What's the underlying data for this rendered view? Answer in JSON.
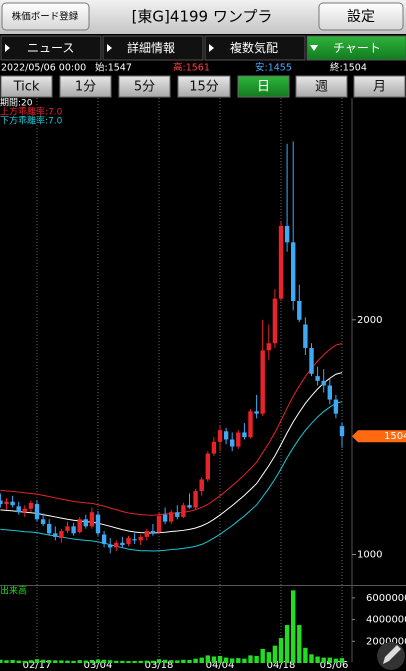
{
  "header": {
    "register_button": "株価ボード登録",
    "title": "[東G]4199 ワンプラ",
    "settings_button": "設定"
  },
  "tabs": [
    "ニュース",
    "詳細情報",
    "複数気配",
    "チャート"
  ],
  "quote": {
    "datetime": "2022/05/06 00:00",
    "open": "始:1547",
    "high": "高:1561",
    "low": "安:1455",
    "close": "終:1504"
  },
  "periods": [
    "Tick",
    "1分",
    "5分",
    "15分",
    "日",
    "週",
    "月"
  ],
  "chart_data": {
    "type": "candlestick",
    "legend": [
      "期間:20",
      "上方乖離率:7.0",
      "下方乖離率:7.0"
    ],
    "categories": [
      null,
      null,
      null,
      null,
      null,
      null,
      "02/17",
      null,
      null,
      null,
      null,
      null,
      null,
      null,
      null,
      null,
      "03/04",
      null,
      null,
      null,
      null,
      null,
      null,
      null,
      null,
      null,
      "03/18",
      null,
      null,
      null,
      null,
      null,
      null,
      null,
      null,
      null,
      "04/04",
      null,
      null,
      null,
      null,
      null,
      null,
      null,
      null,
      null,
      "04/18",
      null,
      null,
      null,
      null,
      null,
      null,
      null,
      null,
      null,
      "05/06"
    ],
    "open": [
      1230,
      1215,
      1225,
      1205,
      1180,
      1195,
      1215,
      1150,
      1130,
      1090,
      1070,
      1100,
      1120,
      1095,
      1150,
      1120,
      1170,
      1085,
      1040,
      1030,
      1050,
      1045,
      1065,
      1060,
      1075,
      1100,
      1095,
      1170,
      1140,
      1180,
      1160,
      1210,
      1200,
      1270,
      1320,
      1430,
      1480,
      1525,
      1490,
      1460,
      1520,
      1500,
      1610,
      1600,
      1870,
      1900,
      2090,
      2400,
      2330,
      2080,
      1980,
      1880,
      1760,
      1740,
      1720,
      1660,
      1547
    ],
    "high": [
      1260,
      1240,
      1250,
      1225,
      1210,
      1230,
      1230,
      1175,
      1150,
      1120,
      1110,
      1140,
      1135,
      1160,
      1170,
      1200,
      1185,
      1100,
      1070,
      1060,
      1075,
      1080,
      1090,
      1085,
      1110,
      1130,
      1180,
      1200,
      1190,
      1210,
      1220,
      1260,
      1280,
      1330,
      1440,
      1500,
      1550,
      1540,
      1520,
      1530,
      1560,
      1620,
      1680,
      2000,
      1980,
      2130,
      2420,
      2750,
      2760,
      2150,
      2010,
      1900,
      1800,
      1790,
      1750,
      1680,
      1561
    ],
    "low": [
      1200,
      1190,
      1200,
      1170,
      1160,
      1180,
      1140,
      1120,
      1080,
      1060,
      1050,
      1090,
      1080,
      1090,
      1110,
      1110,
      1080,
      1030,
      1005,
      1015,
      1030,
      1035,
      1045,
      1040,
      1060,
      1080,
      1090,
      1130,
      1130,
      1150,
      1155,
      1195,
      1190,
      1250,
      1310,
      1420,
      1440,
      1470,
      1440,
      1450,
      1490,
      1495,
      1580,
      1590,
      1830,
      1880,
      2080,
      2290,
      2040,
      1990,
      1850,
      1760,
      1720,
      1690,
      1640,
      1580,
      1455
    ],
    "close": [
      1215,
      1225,
      1210,
      1180,
      1195,
      1220,
      1150,
      1130,
      1090,
      1075,
      1100,
      1120,
      1090,
      1150,
      1120,
      1180,
      1090,
      1045,
      1030,
      1050,
      1040,
      1070,
      1060,
      1075,
      1100,
      1090,
      1165,
      1140,
      1180,
      1160,
      1210,
      1200,
      1270,
      1320,
      1430,
      1480,
      1530,
      1490,
      1460,
      1520,
      1500,
      1610,
      1600,
      1870,
      1900,
      2090,
      2400,
      2330,
      2080,
      2000,
      1880,
      1770,
      1740,
      1720,
      1660,
      1600,
      1504
    ],
    "ma": [
      1190,
      1188,
      1186,
      1183,
      1180,
      1178,
      1175,
      1170,
      1165,
      1160,
      1155,
      1150,
      1146,
      1143,
      1140,
      1138,
      1133,
      1127,
      1120,
      1113,
      1106,
      1100,
      1096,
      1093,
      1092,
      1091,
      1093,
      1095,
      1098,
      1100,
      1103,
      1107,
      1113,
      1122,
      1134,
      1150,
      1168,
      1188,
      1208,
      1230,
      1252,
      1277,
      1302,
      1340,
      1378,
      1420,
      1468,
      1518,
      1565,
      1606,
      1644,
      1676,
      1705,
      1730,
      1751,
      1768,
      1775
    ],
    "upper": [
      1273,
      1271,
      1269,
      1266,
      1263,
      1260,
      1257,
      1252,
      1247,
      1241,
      1236,
      1231,
      1226,
      1223,
      1220,
      1218,
      1212,
      1206,
      1198,
      1191,
      1183,
      1177,
      1173,
      1170,
      1168,
      1167,
      1170,
      1172,
      1175,
      1177,
      1180,
      1184,
      1191,
      1201,
      1213,
      1231,
      1250,
      1271,
      1293,
      1316,
      1340,
      1366,
      1393,
      1434,
      1474,
      1519,
      1571,
      1624,
      1675,
      1718,
      1759,
      1793,
      1824,
      1851,
      1874,
      1892,
      1899
    ],
    "lower": [
      1107,
      1105,
      1103,
      1100,
      1097,
      1096,
      1093,
      1088,
      1083,
      1079,
      1074,
      1070,
      1066,
      1063,
      1060,
      1058,
      1054,
      1048,
      1042,
      1035,
      1029,
      1023,
      1019,
      1016,
      1016,
      1015,
      1016,
      1018,
      1021,
      1023,
      1026,
      1030,
      1035,
      1043,
      1055,
      1070,
      1086,
      1105,
      1123,
      1144,
      1164,
      1188,
      1211,
      1246,
      1282,
      1321,
      1365,
      1412,
      1455,
      1494,
      1529,
      1559,
      1586,
      1609,
      1628,
      1644,
      1651
    ],
    "ylim": [
      870,
      2945
    ],
    "yticks": [
      1000,
      2000
    ],
    "volume_label": "出来高",
    "volume": [
      300000,
      250000,
      280000,
      220000,
      200000,
      260000,
      350000,
      300000,
      280000,
      250000,
      240000,
      220000,
      200000,
      260000,
      230000,
      280000,
      320000,
      300000,
      260000,
      210000,
      200000,
      180000,
      190000,
      200000,
      220000,
      210000,
      350000,
      300000,
      260000,
      240000,
      300000,
      280000,
      400000,
      500000,
      700000,
      600000,
      650000,
      500000,
      420000,
      450000,
      400000,
      700000,
      650000,
      1300000,
      1000000,
      1600000,
      2300000,
      3500000,
      6700000,
      3500000,
      1400000,
      800000,
      600000,
      500000,
      500000,
      400000,
      450000
    ],
    "volume_ylim": [
      0,
      7100000
    ],
    "volume_yticks": [
      2000000,
      4000000,
      6000000
    ],
    "colors": {
      "up": "#e8232a",
      "down": "#3fa9f5",
      "ma": "#ffffff",
      "upper": "#e8232a",
      "lower": "#19c8d8",
      "volume": "#22dd22",
      "last": "#ff6a10"
    }
  }
}
